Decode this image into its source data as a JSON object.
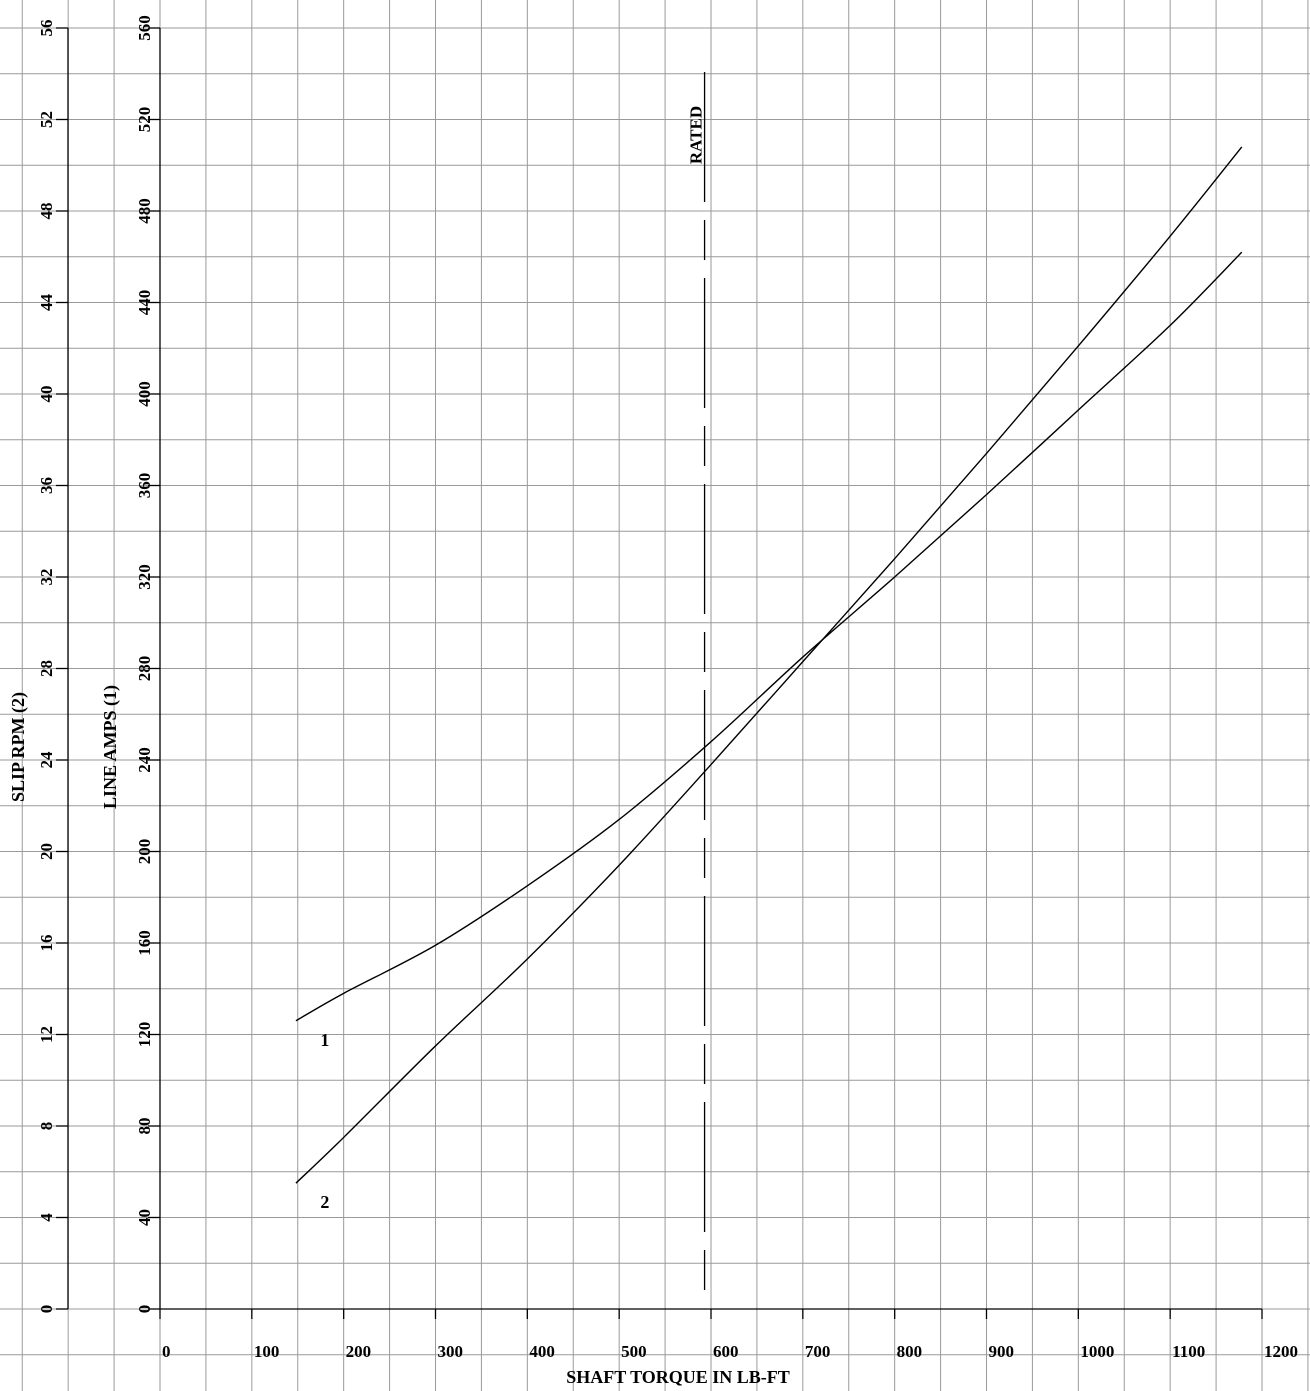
{
  "chart_data": {
    "type": "line",
    "title": "",
    "xlabel": "SHAFT TORQUE IN LB-FT",
    "ylabel_left_outer": "SLIP RPM (2)",
    "ylabel_left_inner": "LINE AMPS (1)",
    "xlim": [
      0,
      1200
    ],
    "ylim_amps": [
      0,
      560
    ],
    "ylim_slip": [
      0,
      56
    ],
    "grid": true,
    "x_ticks": [
      "0",
      "100",
      "200",
      "300",
      "400",
      "500",
      "600",
      "700",
      "800",
      "900",
      "1000",
      "1100",
      "1200"
    ],
    "amps_ticks": [
      "0",
      "40",
      "80",
      "120",
      "160",
      "200",
      "240",
      "280",
      "320",
      "360",
      "400",
      "440",
      "480",
      "520",
      "560"
    ],
    "slip_ticks": [
      "0",
      "4",
      "8",
      "12",
      "16",
      "20",
      "24",
      "28",
      "32",
      "36",
      "40",
      "44",
      "48",
      "52",
      "56"
    ],
    "rated": {
      "label": "RATED",
      "x": 593
    },
    "series": [
      {
        "name": "1",
        "axis": "amps",
        "x": [
          148,
          200,
          300,
          400,
          500,
          600,
          700,
          800,
          900,
          1000,
          1100,
          1178
        ],
        "y": [
          126,
          138,
          159,
          185,
          214,
          248,
          285,
          320,
          356,
          393,
          430,
          462
        ]
      },
      {
        "name": "2",
        "axis": "slip",
        "x": [
          148,
          200,
          300,
          400,
          500,
          600,
          700,
          800,
          900,
          1000,
          1100,
          1178
        ],
        "y": [
          5.5,
          7.5,
          11.5,
          15.3,
          19.4,
          23.8,
          28.3,
          32.8,
          37.4,
          42.1,
          46.9,
          50.8
        ]
      }
    ]
  }
}
